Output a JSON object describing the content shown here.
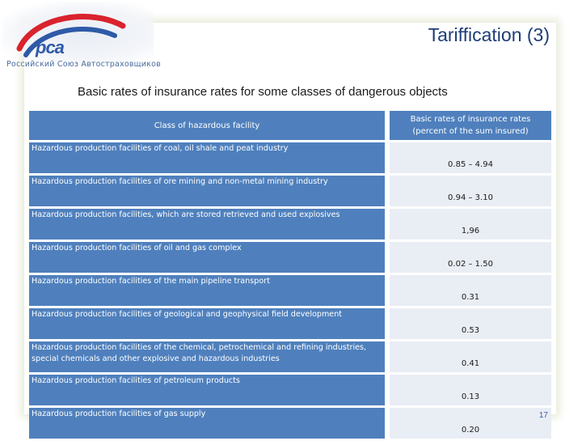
{
  "logo": {
    "letters": "pca",
    "text": "Российский Союз Автостраховщиков"
  },
  "title": "Tariffication (3)",
  "subtitle": "Basic rates of insurance rates for some classes of dangerous objects",
  "table": {
    "headers": {
      "class": "Class of hazardous facility",
      "rate": "Basic rates of insurance rates (percent of the sum insured)"
    },
    "rows": [
      {
        "class": "Hazardous production facilities of coal, oil shale and peat industry",
        "rate": "0.85 – 4.94"
      },
      {
        "class": "Hazardous production facilities of ore mining and non-metal mining industry",
        "rate": "0.94 – 3.10"
      },
      {
        "class": "Hazardous production facilities, which are stored retrieved and used explosives",
        "rate": "1,96"
      },
      {
        "class": "Hazardous production facilities of oil and gas complex",
        "rate": "0.02 – 1.50"
      },
      {
        "class": "Hazardous production facilities of the main pipeline transport",
        "rate": "0.31"
      },
      {
        "class": "Hazardous production facilities of geological and geophysical field development",
        "rate": "0.53"
      },
      {
        "class": "Hazardous production facilities of the chemical, petrochemical and refining industries, special chemicals and other explosive and hazardous industries",
        "rate": "0.41"
      },
      {
        "class": "Hazardous production facilities of petroleum products",
        "rate": "0.13"
      },
      {
        "class": "Hazardous production facilities of gas supply",
        "rate": "0.20"
      }
    ]
  },
  "slide_number": "17",
  "colors": {
    "header_blue": "#4f80bd",
    "value_cell": "#e9edf4",
    "title": "#1f3d78"
  }
}
